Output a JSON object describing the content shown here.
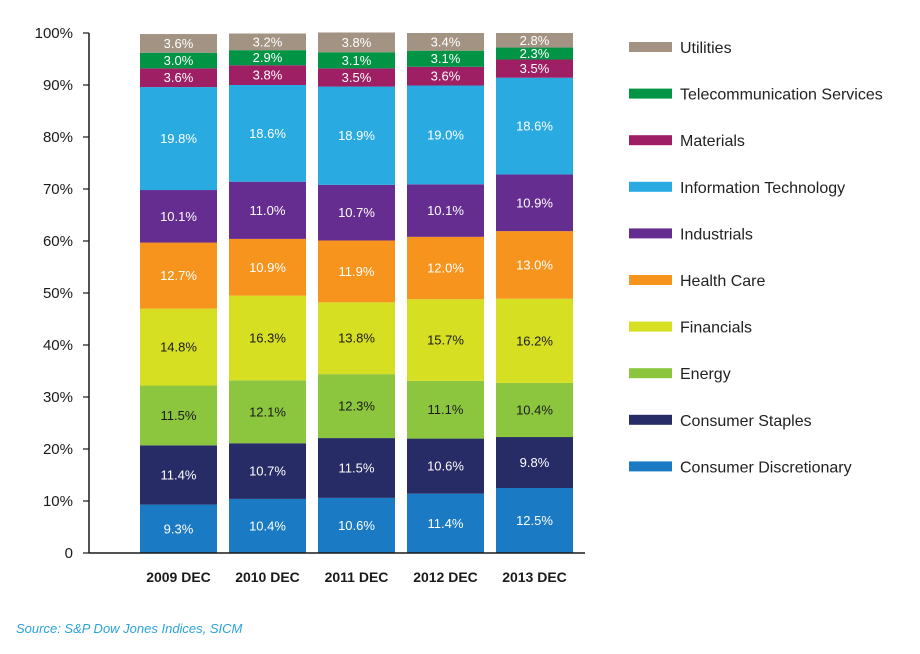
{
  "source_note": "Source: S&P Dow Jones Indices, SICM",
  "chart_data": {
    "type": "bar",
    "stacked": true,
    "categories": [
      "2009 DEC",
      "2010 DEC",
      "2011 DEC",
      "2012 DEC",
      "2013 DEC"
    ],
    "ylim": [
      0,
      100
    ],
    "yticks": [
      "0",
      "10%",
      "20%",
      "30%",
      "40%",
      "50%",
      "60%",
      "70%",
      "80%",
      "90%",
      "100%"
    ],
    "legend_position": "right",
    "series": [
      {
        "name": "Consumer Discretionary",
        "color": "#1a7ac3",
        "label_color": "#ffffff",
        "values": [
          9.3,
          10.4,
          10.6,
          11.4,
          12.5
        ]
      },
      {
        "name": "Consumer Staples",
        "color": "#272b66",
        "label_color": "#ffffff",
        "values": [
          11.4,
          10.7,
          11.5,
          10.6,
          9.8
        ]
      },
      {
        "name": "Energy",
        "color": "#8cc63f",
        "label_color": "#1a1a1a",
        "values": [
          11.5,
          12.1,
          12.3,
          11.1,
          10.4
        ]
      },
      {
        "name": "Financials",
        "color": "#d7df23",
        "label_color": "#1a1a1a",
        "values": [
          14.8,
          16.3,
          13.8,
          15.7,
          16.2
        ]
      },
      {
        "name": "Health Care",
        "color": "#f7941d",
        "label_color": "#ffffff",
        "values": [
          12.7,
          10.9,
          11.9,
          12.0,
          13.0
        ]
      },
      {
        "name": "Industrials",
        "color": "#662d91",
        "label_color": "#ffffff",
        "values": [
          10.1,
          11.0,
          10.7,
          10.1,
          10.9
        ]
      },
      {
        "name": "Information Technology",
        "color": "#29abe2",
        "label_color": "#ffffff",
        "values": [
          19.8,
          18.6,
          18.9,
          19.0,
          18.6
        ]
      },
      {
        "name": "Materials",
        "color": "#9e1f63",
        "label_color": "#ffffff",
        "values": [
          3.6,
          3.8,
          3.5,
          3.6,
          3.5
        ]
      },
      {
        "name": "Telecommunication Services",
        "color": "#009444",
        "label_color": "#ffffff",
        "values": [
          3.0,
          2.9,
          3.1,
          3.1,
          2.3
        ]
      },
      {
        "name": "Utilities",
        "color": "#a39382",
        "label_color": "#ffffff",
        "values": [
          3.6,
          3.2,
          3.8,
          3.4,
          2.8
        ]
      }
    ]
  }
}
